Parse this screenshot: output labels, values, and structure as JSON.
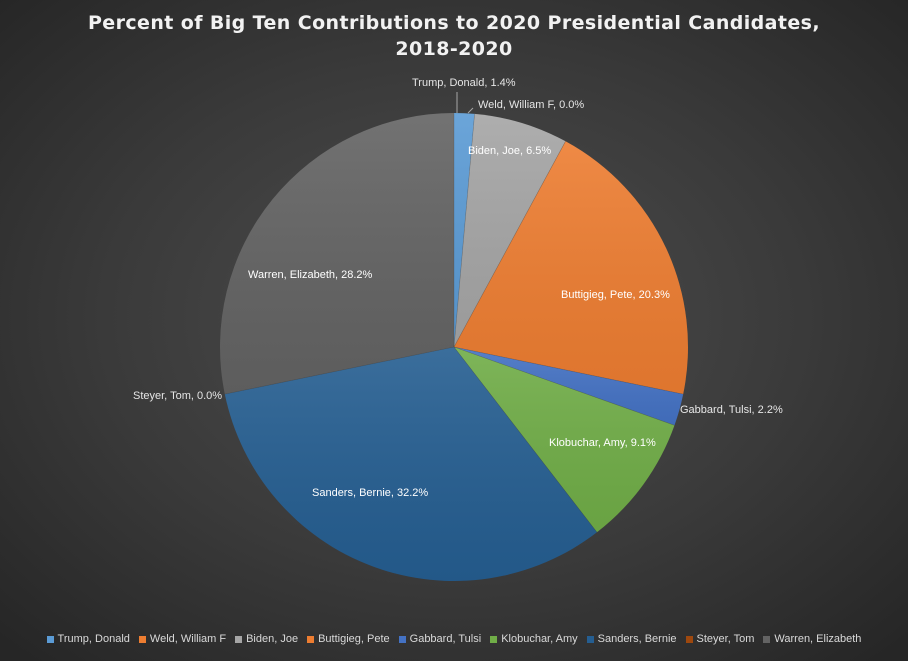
{
  "chart_data": {
    "type": "pie",
    "title_line1": "Percent of Big Ten Contributions to 2020 Presidential Candidates,",
    "title_line2": "2018-2020",
    "legend_position": "bottom",
    "slices": [
      {
        "name": "Trump, Donald",
        "value": 1.4,
        "label": "Trump, Donald, 1.4%",
        "color": "#5b9bd5"
      },
      {
        "name": "Weld, William F",
        "value": 0.0,
        "label": "Weld, William F, 0.0%",
        "color": "#ed7d31"
      },
      {
        "name": "Biden, Joe",
        "value": 6.5,
        "label": "Biden, Joe, 6.5%",
        "color": "#a5a5a5"
      },
      {
        "name": "Buttigieg, Pete",
        "value": 20.3,
        "label": "Buttigieg, Pete, 20.3%",
        "color": "#ed7d31"
      },
      {
        "name": "Gabbard, Tulsi",
        "value": 2.2,
        "label": "Gabbard, Tulsi, 2.2%",
        "color": "#4472c4"
      },
      {
        "name": "Klobuchar, Amy",
        "value": 9.1,
        "label": "Klobuchar, Amy, 9.1%",
        "color": "#70ad47"
      },
      {
        "name": "Sanders, Bernie",
        "value": 32.2,
        "label": "Sanders, Bernie, 32.2%",
        "color": "#255e91"
      },
      {
        "name": "Steyer, Tom",
        "value": 0.0,
        "label": "Steyer, Tom, 0.0%",
        "color": "#9e480e"
      },
      {
        "name": "Warren, Elizabeth",
        "value": 28.2,
        "label": "Warren, Elizabeth, 28.2%",
        "color": "#636363"
      }
    ]
  }
}
